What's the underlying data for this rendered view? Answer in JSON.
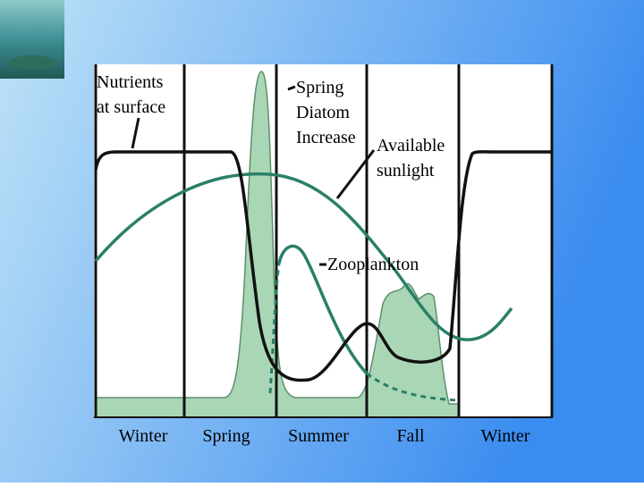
{
  "annotations": {
    "nutrients": [
      "Nutrients",
      "at surface"
    ],
    "diatom": [
      "Spring",
      "Diatom",
      "Increase"
    ],
    "sunlight": [
      "Available",
      "sunlight"
    ],
    "zooplankton": "Zooplankton"
  },
  "seasons": [
    "Winter",
    "Spring",
    "Summer",
    "Fall",
    "Winter"
  ]
}
